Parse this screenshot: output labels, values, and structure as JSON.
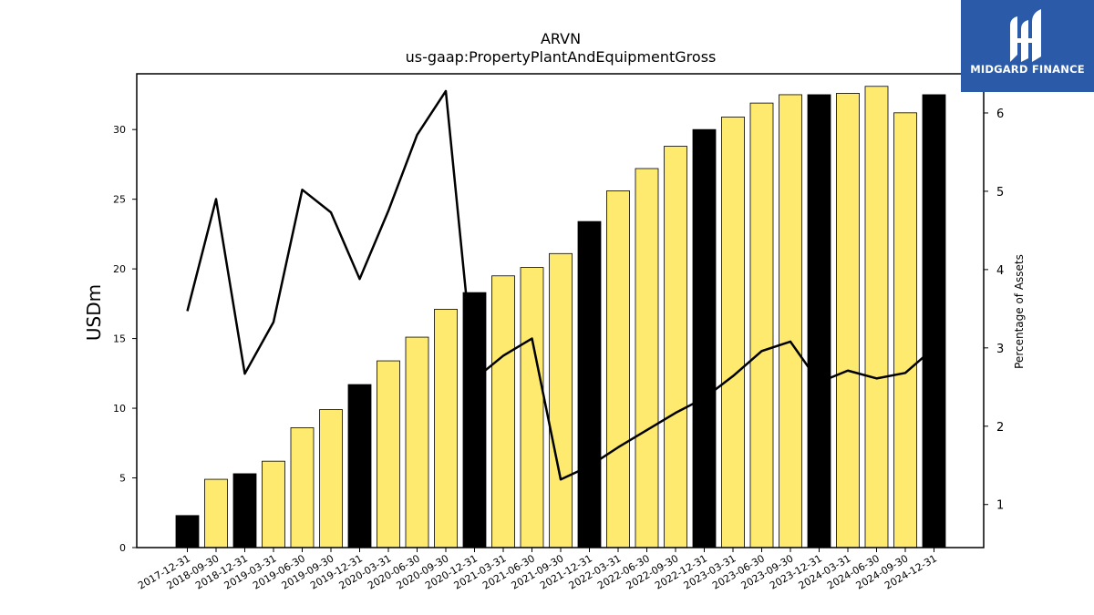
{
  "chart_data": {
    "type": "bar",
    "title": "ARVN",
    "subtitle": "us-gaap:PropertyPlantAndEquipmentGross",
    "ylabel": "USDm",
    "y2label": "Percentage of Assets",
    "ylim": [
      0,
      34
    ],
    "y2lim": [
      0.45,
      6.5
    ],
    "yticks": [
      0,
      5,
      10,
      15,
      20,
      25,
      30
    ],
    "y2ticks": [
      1,
      2,
      3,
      4,
      5,
      6
    ],
    "grid": false,
    "categories": [
      "2017-12-31",
      "2018-09-30",
      "2018-12-31",
      "2019-03-31",
      "2019-06-30",
      "2019-09-30",
      "2019-12-31",
      "2020-03-31",
      "2020-06-30",
      "2020-09-30",
      "2020-12-31",
      "2021-03-31",
      "2021-06-30",
      "2021-09-30",
      "2021-12-31",
      "2022-03-31",
      "2022-06-30",
      "2022-09-30",
      "2022-12-31",
      "2023-03-31",
      "2023-06-30",
      "2023-09-30",
      "2023-12-31",
      "2024-03-31",
      "2024-06-30",
      "2024-09-30",
      "2024-12-31"
    ],
    "series": [
      {
        "values": [
          2.3,
          4.9,
          5.3,
          6.2,
          8.6,
          9.9,
          11.7,
          13.4,
          15.1,
          17.1,
          18.3,
          19.5,
          20.1,
          21.1,
          23.4,
          25.6,
          27.2,
          28.8,
          30.0,
          30.9,
          31.9,
          32.5,
          32.5,
          32.6,
          33.1,
          31.2,
          32.5
        ],
        "year_end": [
          true,
          false,
          true,
          false,
          false,
          false,
          true,
          false,
          false,
          false,
          true,
          false,
          false,
          false,
          true,
          false,
          false,
          false,
          true,
          false,
          false,
          false,
          true,
          false,
          false,
          false,
          true
        ]
      },
      {
        "axis": "right",
        "values": [
          3.47,
          4.9,
          2.67,
          3.33,
          5.02,
          4.73,
          3.88,
          4.75,
          5.72,
          6.28,
          2.6,
          2.9,
          3.12,
          1.32,
          1.49,
          1.73,
          1.95,
          2.17,
          2.36,
          2.64,
          2.96,
          3.08,
          2.56,
          2.71,
          2.61,
          2.68,
          3.0
        ]
      }
    ]
  },
  "colors": {
    "bar_year_end": "#000000",
    "bar_other": "#fdea6f",
    "line": "#000000",
    "logo_bg": "#2a5aa8"
  },
  "logo": {
    "text": "MIDGARD FINANCE",
    "icon": "midgard-logo-icon"
  }
}
